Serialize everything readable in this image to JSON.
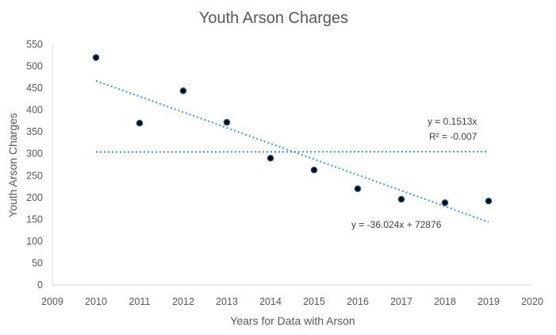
{
  "chart_data": {
    "type": "scatter",
    "title": "Youth Arson Charges",
    "xlabel": "Years for Data with Arson",
    "ylabel": "Youth Arson Charges",
    "xlim": [
      2009,
      2020
    ],
    "ylim": [
      0,
      550
    ],
    "xticks": [
      2009,
      2010,
      2011,
      2012,
      2013,
      2014,
      2015,
      2016,
      2017,
      2018,
      2019,
      2020
    ],
    "yticks": [
      0,
      50,
      100,
      150,
      200,
      250,
      300,
      350,
      400,
      450,
      500,
      550
    ],
    "series": [
      {
        "name": "Youth Arson Charges",
        "x": [
          2010,
          2011,
          2012,
          2013,
          2014,
          2015,
          2016,
          2017,
          2018,
          2019
        ],
        "y": [
          520,
          370,
          444,
          372,
          290,
          263,
          220,
          196,
          188,
          192
        ]
      }
    ],
    "trendlines": [
      {
        "name": "linear",
        "equation": "y = -36.024x + 72876",
        "x_range": [
          2010,
          2019
        ],
        "y_start": 467,
        "y_end": 144
      },
      {
        "name": "linear-through-origin",
        "equation": "y = 0.1513x",
        "r_squared": "R² = -0.007",
        "x_range": [
          2010,
          2019
        ],
        "y_start": 304,
        "y_end": 305
      }
    ],
    "grid": false,
    "legend": "none"
  },
  "colors": {
    "point": "#000000",
    "point_edge": "#1f4e79",
    "trendline": "#5b9bd5",
    "text": "#595959",
    "axis": "#d9d9d9"
  }
}
